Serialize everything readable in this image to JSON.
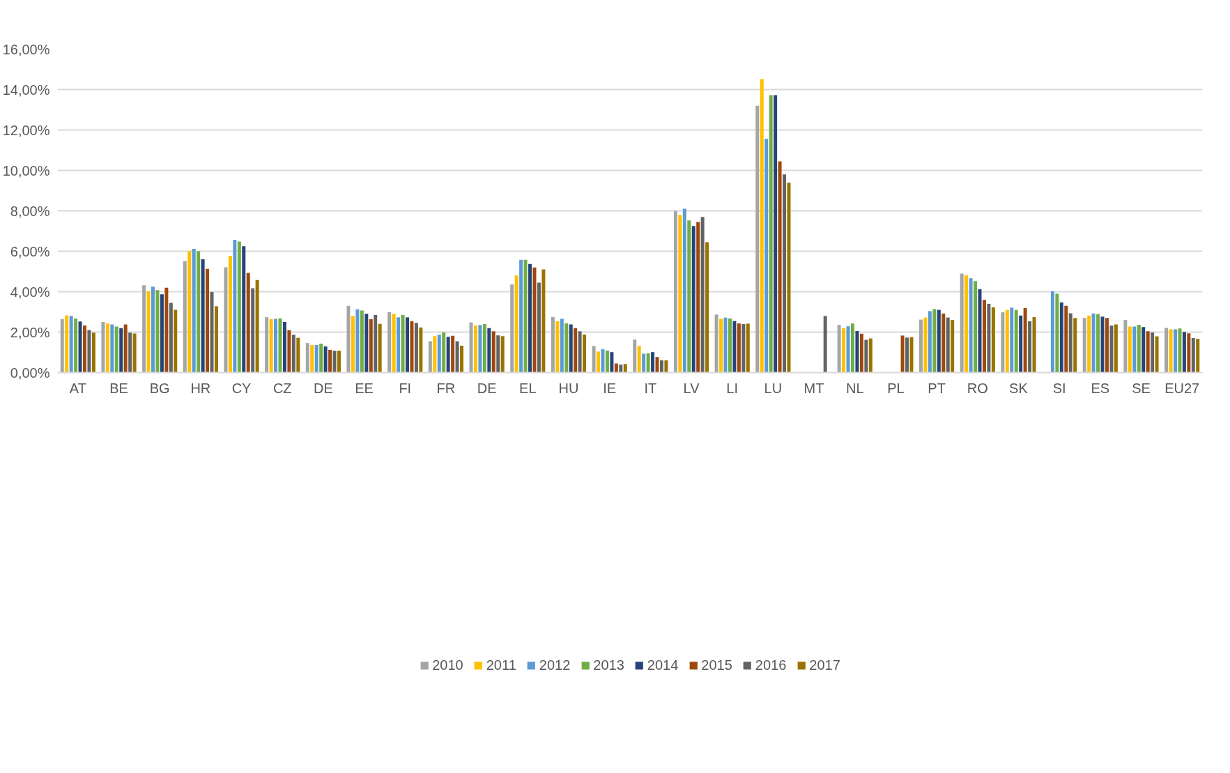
{
  "chart_data": {
    "type": "bar",
    "categories": [
      "AT",
      "BE",
      "BG",
      "HR",
      "CY",
      "CZ",
      "DE",
      "EE",
      "FI",
      "FR",
      "DE",
      "EL",
      "HU",
      "IE",
      "IT",
      "LV",
      "LI",
      "LU",
      "MT",
      "NL",
      "PL",
      "PT",
      "RO",
      "SK",
      "SI",
      "ES",
      "SE",
      "EU27"
    ],
    "series": [
      {
        "name": "2010",
        "color": "#a5a5a5",
        "values": [
          2.65,
          2.5,
          4.32,
          5.52,
          5.21,
          2.74,
          1.46,
          3.3,
          2.99,
          1.55,
          2.48,
          4.36,
          2.75,
          1.31,
          1.63,
          8.0,
          2.87,
          13.2,
          null,
          2.36,
          null,
          2.62,
          4.9,
          2.98,
          null,
          2.7,
          2.6,
          2.21
        ]
      },
      {
        "name": "2011",
        "color": "#ffc000",
        "values": [
          2.83,
          2.43,
          4.02,
          6.0,
          5.77,
          2.65,
          1.36,
          2.8,
          2.91,
          1.8,
          2.33,
          4.8,
          2.54,
          1.04,
          1.32,
          7.8,
          2.66,
          14.52,
          null,
          2.19,
          null,
          2.72,
          4.82,
          3.1,
          null,
          2.82,
          2.28,
          2.14
        ]
      },
      {
        "name": "2012",
        "color": "#5b9bd5",
        "values": [
          2.8,
          2.38,
          4.25,
          6.12,
          6.57,
          2.66,
          1.36,
          3.13,
          2.73,
          1.87,
          2.35,
          5.58,
          2.66,
          1.15,
          0.93,
          8.1,
          2.72,
          11.56,
          null,
          2.29,
          null,
          3.04,
          4.66,
          3.21,
          4.02,
          2.92,
          2.28,
          2.14
        ]
      },
      {
        "name": "2013",
        "color": "#70ad47",
        "values": [
          2.67,
          2.28,
          4.08,
          6.0,
          6.48,
          2.68,
          1.43,
          3.07,
          2.85,
          1.99,
          2.4,
          5.58,
          2.44,
          1.09,
          0.95,
          7.53,
          2.68,
          13.72,
          null,
          2.43,
          null,
          3.14,
          4.53,
          3.1,
          3.9,
          2.9,
          2.36,
          2.18
        ]
      },
      {
        "name": "2014",
        "color": "#264478",
        "values": [
          2.53,
          2.2,
          3.87,
          5.6,
          6.25,
          2.5,
          1.29,
          2.91,
          2.73,
          1.77,
          2.2,
          5.37,
          2.38,
          1.01,
          1.01,
          7.25,
          2.55,
          13.72,
          null,
          2.05,
          null,
          3.1,
          4.12,
          2.82,
          3.47,
          2.77,
          2.25,
          2.01
        ]
      },
      {
        "name": "2015",
        "color": "#9e480e",
        "values": [
          2.33,
          2.38,
          4.2,
          5.13,
          4.93,
          2.1,
          1.12,
          2.64,
          2.54,
          1.82,
          2.04,
          5.2,
          2.2,
          0.45,
          0.77,
          7.45,
          2.43,
          10.45,
          null,
          1.92,
          1.83,
          2.92,
          3.6,
          3.19,
          3.3,
          2.7,
          2.04,
          1.94
        ]
      },
      {
        "name": "2016",
        "color": "#636363",
        "values": [
          2.1,
          1.97,
          3.45,
          3.98,
          4.17,
          1.87,
          1.08,
          2.85,
          2.46,
          1.55,
          1.84,
          4.45,
          2.04,
          0.4,
          0.6,
          7.7,
          2.4,
          9.8,
          2.8,
          1.62,
          1.73,
          2.72,
          3.4,
          2.54,
          2.93,
          2.33,
          1.98,
          1.71
        ]
      },
      {
        "name": "2017",
        "color": "#997300",
        "values": [
          1.97,
          1.93,
          3.1,
          3.28,
          4.58,
          1.72,
          1.08,
          2.41,
          2.23,
          1.33,
          1.8,
          5.1,
          1.88,
          0.42,
          0.6,
          6.45,
          2.42,
          9.4,
          null,
          1.69,
          1.75,
          2.6,
          3.23,
          2.74,
          2.7,
          2.38,
          1.79,
          1.67
        ]
      }
    ],
    "ylim": [
      0,
      16
    ],
    "yticks": [
      {
        "value": 0,
        "label": "0,00%"
      },
      {
        "value": 2,
        "label": "2,00%"
      },
      {
        "value": 4,
        "label": "4,00%"
      },
      {
        "value": 6,
        "label": "6,00%"
      },
      {
        "value": 8,
        "label": "8,00%"
      },
      {
        "value": 10,
        "label": "10,00%"
      },
      {
        "value": 12,
        "label": "12,00%"
      },
      {
        "value": 14,
        "label": "14,00%"
      },
      {
        "value": 16,
        "label": "16,00%"
      }
    ],
    "grid": "y",
    "legend": "bottom"
  }
}
